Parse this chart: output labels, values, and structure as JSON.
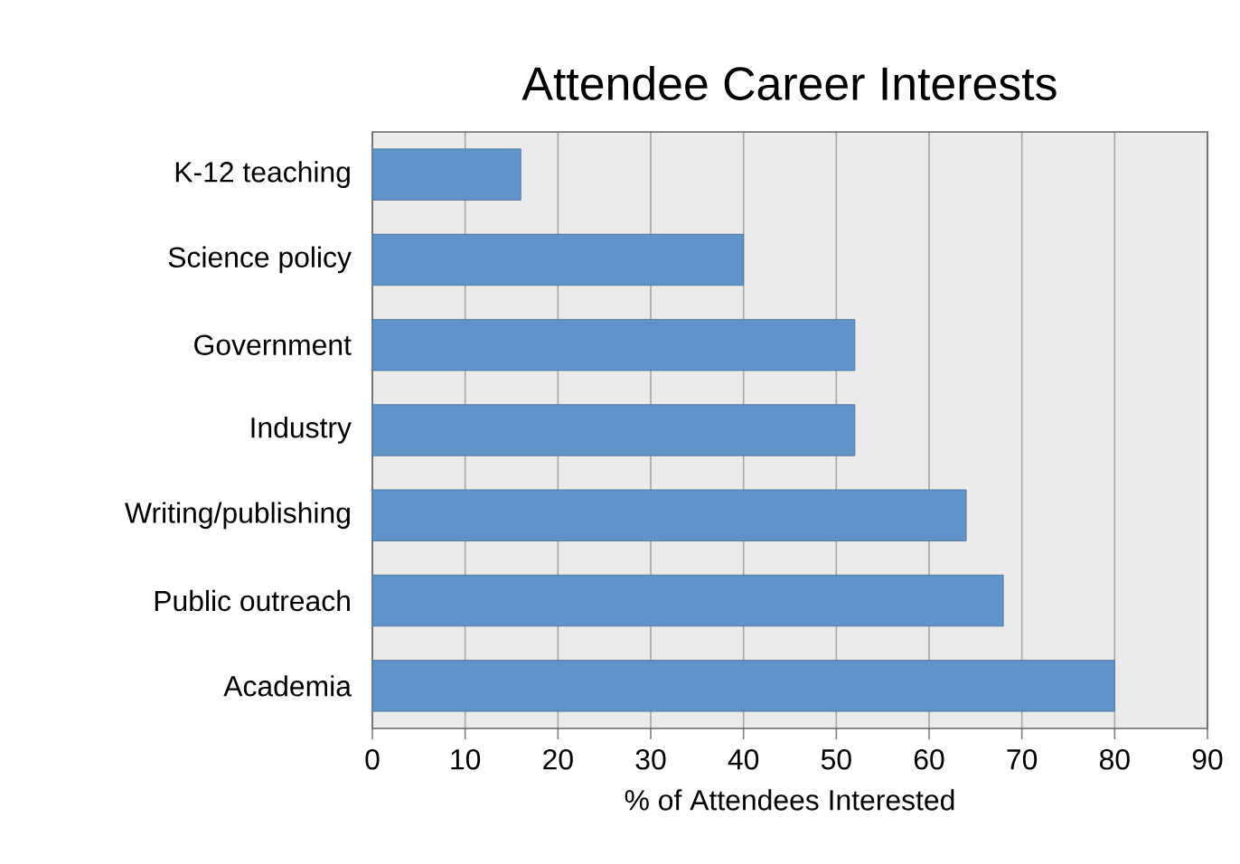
{
  "chart_data": {
    "type": "bar",
    "orientation": "horizontal",
    "title": "Attendee Career Interests",
    "xlabel": "% of Attendees Interested",
    "categories": [
      "K-12 teaching",
      "Science policy",
      "Government",
      "Industry",
      "Writing/publishing",
      "Public outreach",
      "Academia"
    ],
    "values": [
      16,
      40,
      52,
      52,
      64,
      68,
      80
    ],
    "color": "#6094c8",
    "xlim": [
      0,
      90
    ],
    "xticks": [
      0,
      10,
      20,
      30,
      40,
      50,
      60,
      70,
      80,
      90
    ],
    "grid": "x"
  }
}
